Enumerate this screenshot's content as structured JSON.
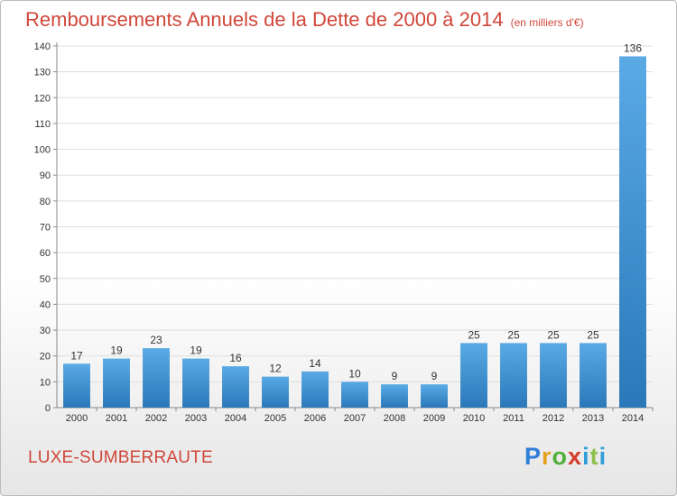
{
  "header": {
    "title": "Remboursements Annuels de la Dette de 2000 à 2014",
    "unit": "(en milliers d'€)"
  },
  "footer": {
    "city": "LUXE-SUMBERRAUTE",
    "logo_letters": [
      "P",
      "r",
      "o",
      "x",
      "i",
      "t",
      "i"
    ]
  },
  "colors": {
    "bar_light": "#5aaae6",
    "bar_dark": "#2a78b8",
    "accent": "#d0473a"
  },
  "chart_data": {
    "type": "bar",
    "categories": [
      "2000",
      "2001",
      "2002",
      "2003",
      "2004",
      "2005",
      "2006",
      "2007",
      "2008",
      "2009",
      "2010",
      "2011",
      "2012",
      "2013",
      "2014"
    ],
    "values": [
      17,
      19,
      23,
      19,
      16,
      12,
      14,
      10,
      9,
      9,
      25,
      25,
      25,
      25,
      136
    ],
    "title": "Remboursements Annuels de la Dette de 2000 à 2014",
    "ylim": [
      0,
      140
    ],
    "yticks": [
      0,
      10,
      20,
      30,
      40,
      50,
      60,
      70,
      80,
      90,
      100,
      110,
      120,
      130,
      140
    ],
    "grid": true,
    "legend": "none"
  }
}
